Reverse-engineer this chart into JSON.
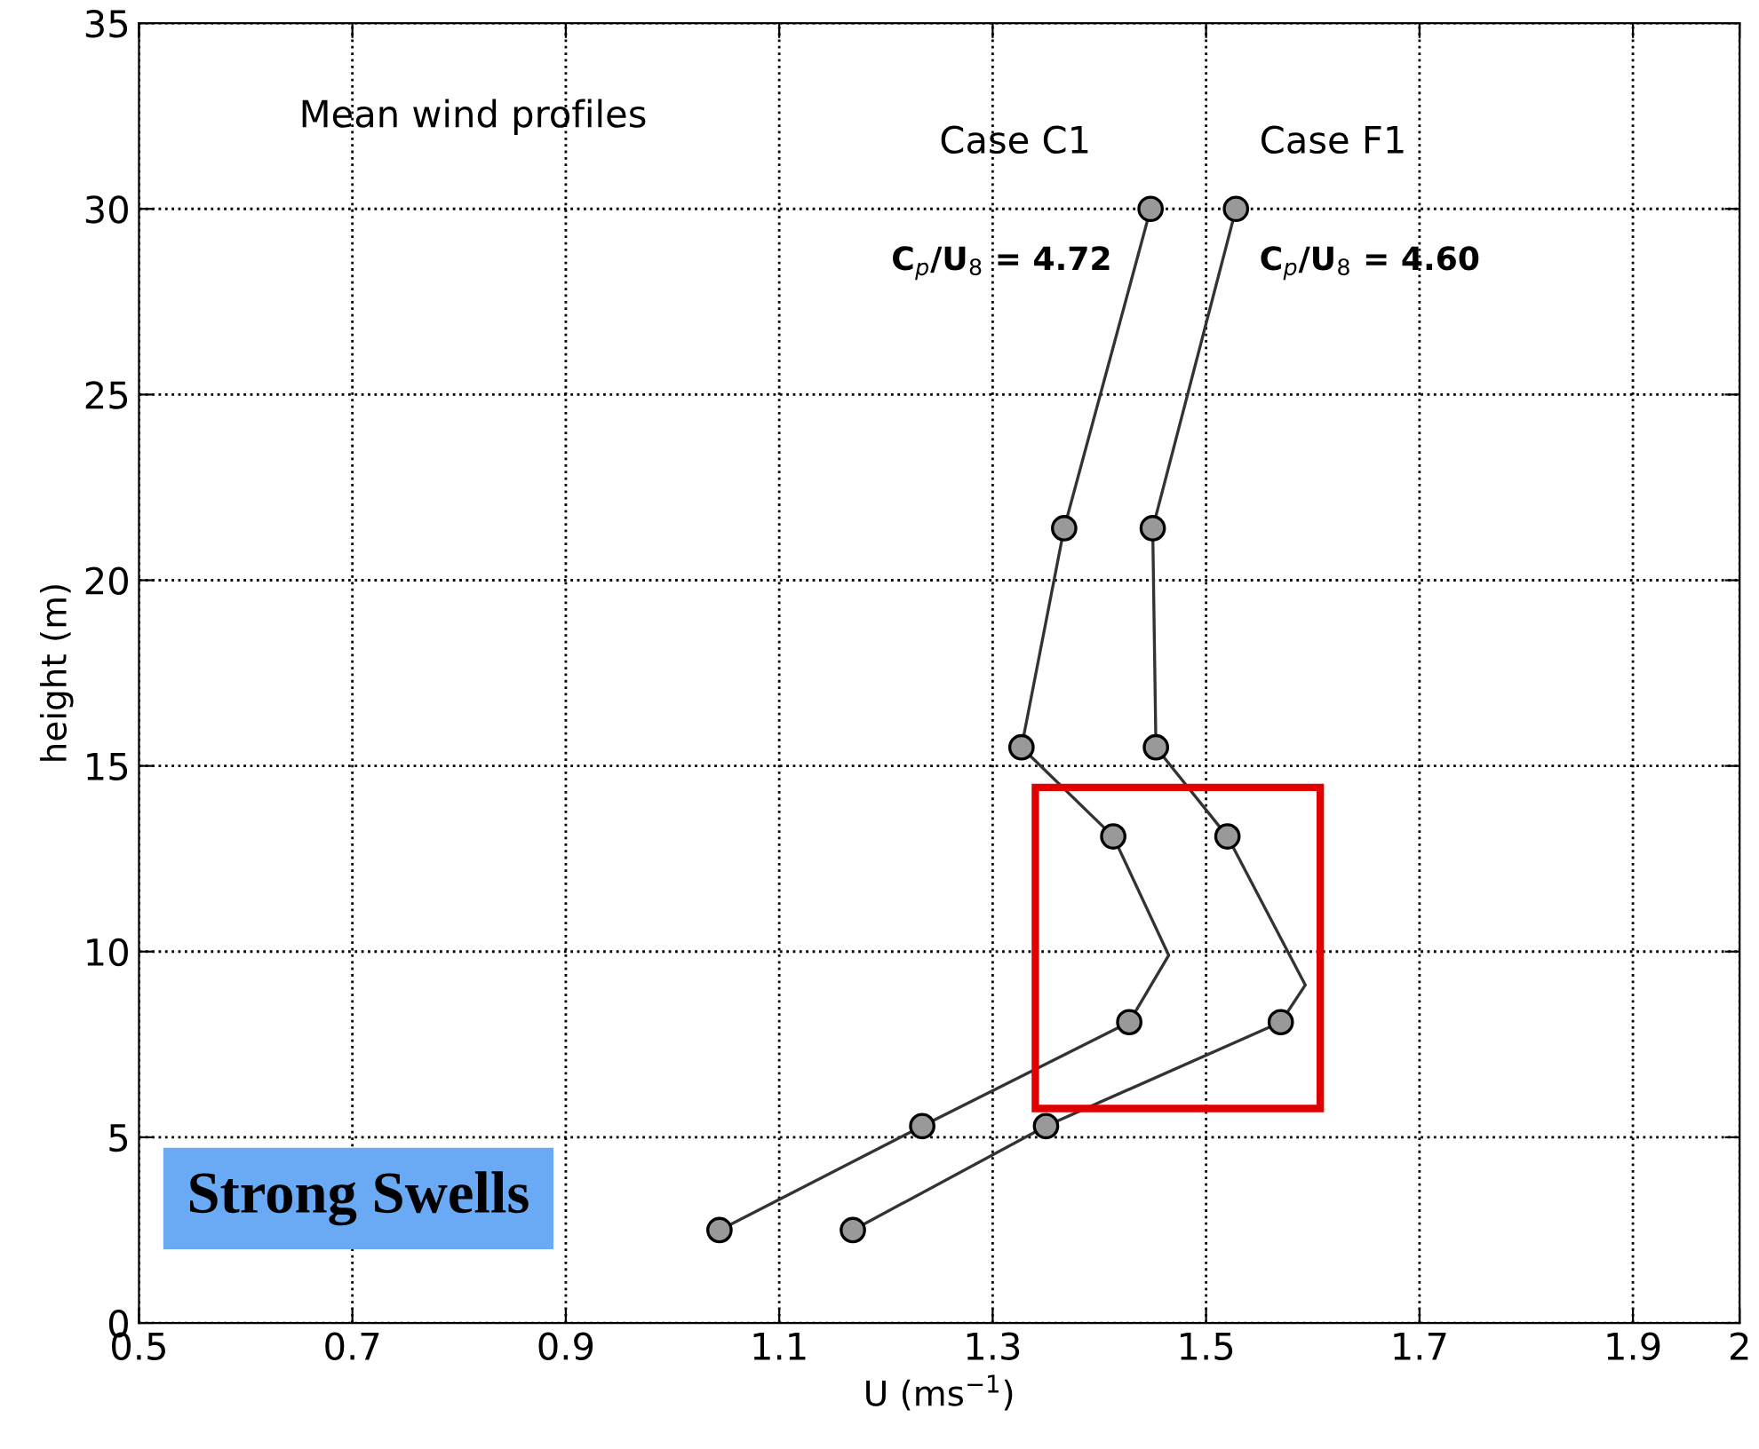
{
  "chart_data": {
    "type": "line",
    "title": "Mean wind profiles",
    "xlabel": "U (ms$^{−1}$)",
    "ylabel": "height (m)",
    "xlim": [
      0.5,
      2
    ],
    "ylim": [
      0,
      35
    ],
    "xticks": [
      0.5,
      0.7,
      0.9,
      1.1,
      1.3,
      1.5,
      1.7,
      1.9,
      2
    ],
    "yticks": [
      0,
      5,
      10,
      15,
      20,
      25,
      30,
      35
    ],
    "grid": true,
    "line_style": "solid",
    "series": [
      {
        "marker": "none",
        "color": "#333333",
        "x": [
          1.044,
          1.234,
          1.428,
          1.465,
          1.413,
          1.327,
          1.367,
          1.448
        ],
        "values": [
          2.5,
          5.3,
          8.1,
          9.9,
          13.1,
          15.5,
          21.4,
          30
        ]
      },
      {
        "marker": "none",
        "color": "#333333",
        "x": [
          1.169,
          1.35,
          1.57,
          1.593,
          1.52,
          1.453,
          1.45,
          1.528
        ],
        "values": [
          2.5,
          5.3,
          8.1,
          9.1,
          13.1,
          15.5,
          21.4,
          30
        ]
      },
      {
        "type": "scatter",
        "marker": "circle",
        "color": "#999999",
        "x": [
          1.044,
          1.234,
          1.428,
          1.413,
          1.327,
          1.367,
          1.448
        ],
        "values": [
          2.5,
          5.3,
          8.1,
          13.1,
          15.5,
          21.4,
          30
        ]
      },
      {
        "type": "scatter",
        "marker": "circle",
        "color": "#999999",
        "x": [
          1.169,
          1.35,
          1.57,
          1.52,
          1.453,
          1.45,
          1.528
        ],
        "values": [
          2.5,
          5.3,
          8.1,
          13.1,
          15.5,
          21.4,
          30
        ]
      }
    ],
    "annotations": [
      "Case C1",
      "Case F1",
      "C$_{p}$/U$_{8}$ = 4.72",
      "C$_{p}$/U$_{8}$ = 4.60",
      "Strong Swells"
    ]
  }
}
